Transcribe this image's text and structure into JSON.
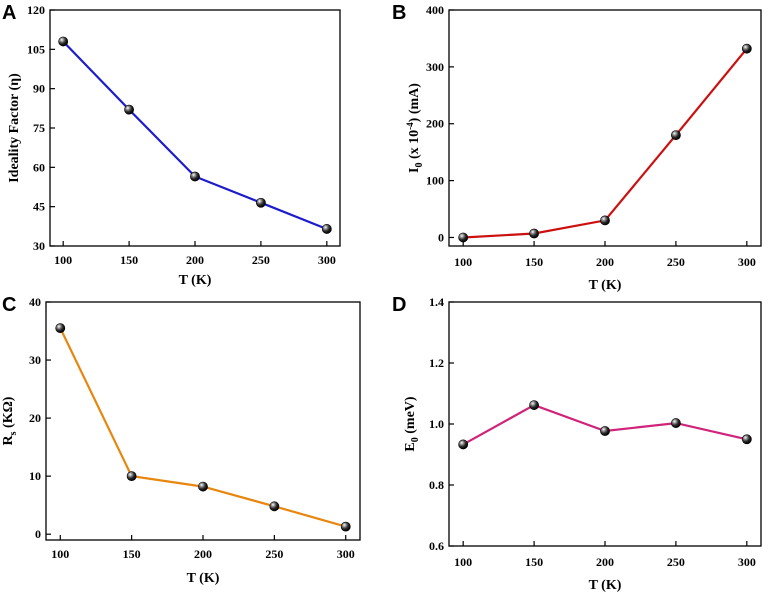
{
  "chart_data": [
    {
      "panel": "A",
      "type": "line",
      "x": [
        100,
        150,
        200,
        250,
        300
      ],
      "values": [
        108,
        82,
        56.5,
        46.5,
        36.5
      ],
      "xlabel": "T (K)",
      "ylabel": "Ideality Factor (η)",
      "xlim": [
        90,
        310
      ],
      "ylim": [
        30,
        120
      ],
      "xticks": [
        100,
        150,
        200,
        250,
        300
      ],
      "yticks": [
        30,
        45,
        60,
        75,
        90,
        105,
        120
      ],
      "line_color": "#1c1ccc",
      "marker": "black sphere"
    },
    {
      "panel": "B",
      "type": "line",
      "x": [
        100,
        150,
        200,
        250,
        300
      ],
      "values": [
        0,
        7,
        30,
        180,
        332
      ],
      "xlabel": "T (K)",
      "ylabel": "I0 (x 10-4) (mA)",
      "ylabel_parts": {
        "main": "I",
        "sub": "0",
        "mid": " (x 10",
        "sup": "-4",
        "end": ") (mA)"
      },
      "xlim": [
        90,
        310
      ],
      "ylim": [
        -15,
        400
      ],
      "xticks": [
        100,
        150,
        200,
        250,
        300
      ],
      "yticks": [
        0,
        100,
        200,
        300,
        400
      ],
      "line_color": "#cc1010",
      "marker": "black sphere"
    },
    {
      "panel": "C",
      "type": "line",
      "x": [
        100,
        150,
        200,
        250,
        300
      ],
      "values": [
        35.5,
        10,
        8.2,
        4.8,
        1.3
      ],
      "xlabel": "T (K)",
      "ylabel": "Rs (KΩ)",
      "ylabel_parts": {
        "main": "R",
        "sub": "s",
        "end": " (KΩ)"
      },
      "xlim": [
        90,
        310
      ],
      "ylim": [
        -1,
        40
      ],
      "xticks": [
        100,
        150,
        200,
        250,
        300
      ],
      "yticks": [
        0,
        10,
        20,
        30,
        40
      ],
      "line_color": "#e8860e",
      "marker": "black sphere"
    },
    {
      "panel": "D",
      "type": "line",
      "x": [
        100,
        150,
        200,
        250,
        300
      ],
      "values": [
        0.933,
        1.062,
        0.977,
        1.003,
        0.95
      ],
      "xlabel": "T (K)",
      "ylabel": "E0 (meV)",
      "ylabel_parts": {
        "main": "E",
        "sub": "0",
        "end": " (meV)"
      },
      "xlim": [
        90,
        310
      ],
      "ylim": [
        0.6,
        1.4
      ],
      "xticks": [
        100,
        150,
        200,
        250,
        300
      ],
      "yticks": [
        0.6,
        0.8,
        1.0,
        1.2,
        1.4
      ],
      "ytick_labels": [
        "0.6",
        "0.8",
        "1.0",
        "1.2",
        "1.4"
      ],
      "line_color": "#d0237a",
      "marker": "black sphere"
    }
  ]
}
